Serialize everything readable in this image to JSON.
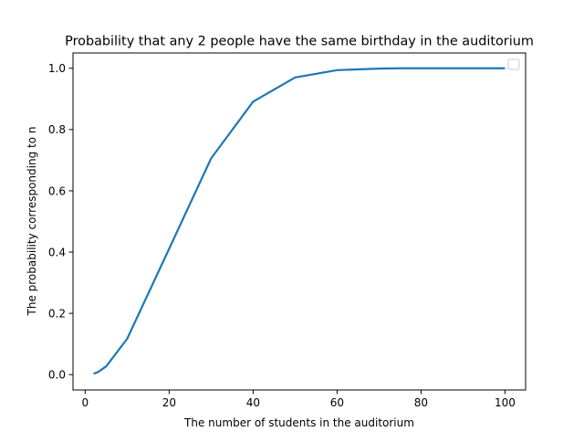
{
  "chart_data": {
    "type": "line",
    "title": "Probability that any 2 people have the same birthday in the auditorium",
    "xlabel": "The number of students in the auditorium",
    "ylabel": "The probability corresponding to n",
    "xlim": [
      -2.9,
      104.9
    ],
    "ylim": [
      -0.05,
      1.05
    ],
    "xticks": [
      0,
      20,
      40,
      60,
      80,
      100
    ],
    "yticks": [
      0.0,
      0.2,
      0.4,
      0.6,
      0.8,
      1.0
    ],
    "ytick_labels": [
      "0.0",
      "0.2",
      "0.4",
      "0.6",
      "0.8",
      "1.0"
    ],
    "grid": false,
    "legend": {
      "location": "upper right",
      "entries": []
    },
    "series": [
      {
        "color": "#1f77b4",
        "x": [
          2,
          3,
          5,
          10,
          20,
          30,
          40,
          50,
          60,
          70,
          75,
          80,
          90,
          100
        ],
        "y": [
          0.003,
          0.008,
          0.027,
          0.117,
          0.411,
          0.706,
          0.891,
          0.97,
          0.994,
          0.999,
          1.0,
          1.0,
          1.0,
          1.0
        ]
      }
    ]
  }
}
